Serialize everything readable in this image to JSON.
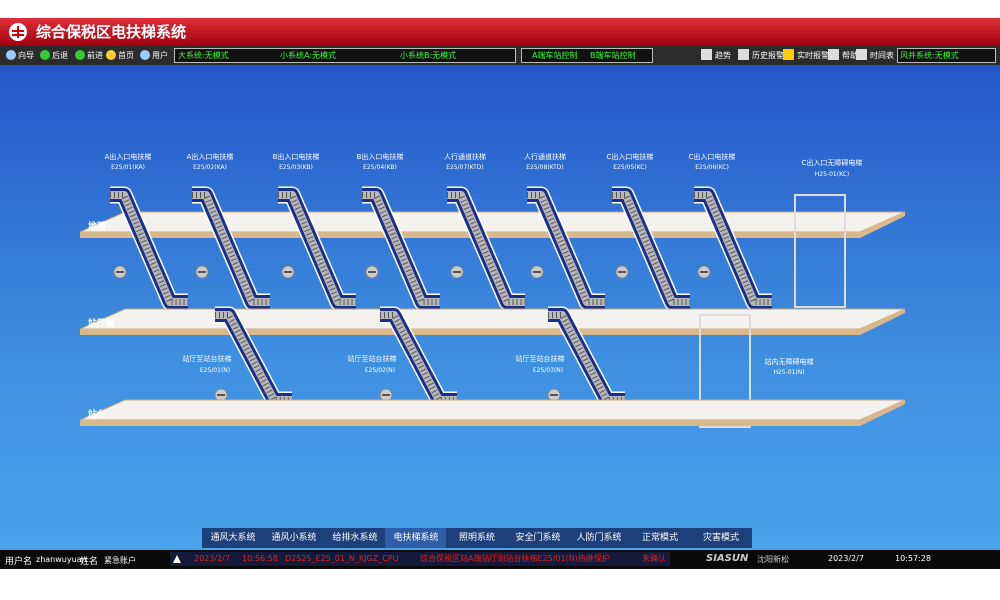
{
  "header": {
    "title": "综合保税区电扶梯系统"
  },
  "toolbar": {
    "nav": [
      "向导",
      "后退",
      "前进",
      "首页",
      "用户"
    ],
    "modes": [
      "大系统:无模式",
      "小系统A:无模式",
      "小系统B:无模式"
    ],
    "controls": [
      "A端车站控制",
      "B端车站控制"
    ],
    "tools": [
      "趋势",
      "历史报警",
      "实时报警",
      "帮助",
      "时间表"
    ],
    "fan": "风井系统:无模式"
  },
  "floors": [
    "地面",
    "站厅层",
    "站台"
  ],
  "escalators": [
    {
      "name": "A出入口电扶梯",
      "code": "E25/01(KA)"
    },
    {
      "name": "A出入口电扶梯",
      "code": "E25/02(KA)"
    },
    {
      "name": "B出入口电扶梯",
      "code": "E25/03(KB)"
    },
    {
      "name": "B出入口电扶梯",
      "code": "E25/04(KB)"
    },
    {
      "name": "人行通道扶梯",
      "code": "E25/07(KTD)"
    },
    {
      "name": "人行通道扶梯",
      "code": "E25/08(KTD)"
    },
    {
      "name": "C出入口电扶梯",
      "code": "E25/05(KC)"
    },
    {
      "name": "C出入口电扶梯",
      "code": "E25/06(KC)"
    }
  ],
  "lower_escalators": [
    {
      "name": "站厅至站台扶梯",
      "code": "E25/01(N)"
    },
    {
      "name": "站厅至站台扶梯",
      "code": "E25/02(N)"
    },
    {
      "name": "站厅至站台扶梯",
      "code": "E25/03(N)"
    }
  ],
  "elevators": [
    {
      "name": "C出入口无障碍电梯",
      "code": "H25-01(KC)"
    },
    {
      "name": "站内无障碍电梯",
      "code": "H25-01(N)"
    }
  ],
  "tabs": [
    "通风大系统",
    "通风小系统",
    "给排水系统",
    "电扶梯系统",
    "照明系统",
    "安全门系统",
    "人防门系统",
    "正常模式",
    "灾害模式"
  ],
  "status": {
    "user_label": "用户名",
    "user": "zhanwuyuan",
    "name_label": "姓名",
    "name": "紧急账户",
    "alarm": {
      "date": "2023/2/7",
      "time": "10:56:58",
      "tag": "D2S25_E25_01_N_KJGZ_CPU",
      "message": "综合保税区站A端站厅到站台扶梯E25/01(N)热继保护",
      "state": "未确认"
    },
    "logo": "SIASUN",
    "logo_cn": "沈阳新松",
    "date": "2023/2/7",
    "time": "10:57:28"
  }
}
